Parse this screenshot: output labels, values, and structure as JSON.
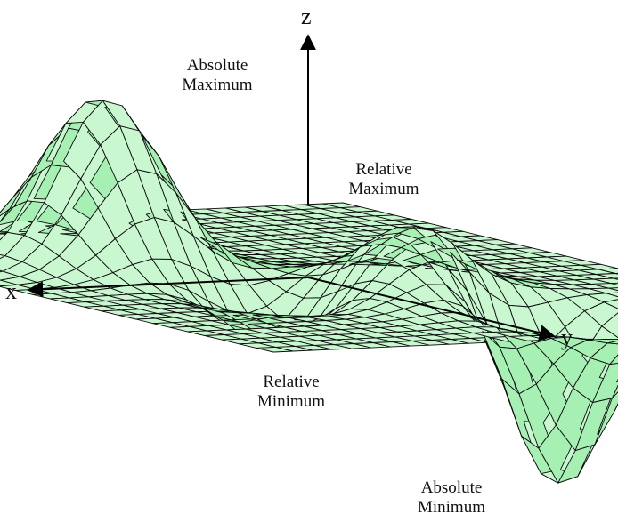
{
  "axes": {
    "x": "x",
    "y": "y",
    "z": "z"
  },
  "labels": {
    "absolute_maximum": [
      "Absolute",
      "Maximum"
    ],
    "relative_maximum": [
      "Relative",
      "Maximum"
    ],
    "relative_minimum": [
      "Relative",
      "Minimum"
    ],
    "absolute_minimum": [
      "Absolute",
      "Minimum"
    ]
  },
  "colors": {
    "surface": "#a6f0b4",
    "surface_light": "#c8f7d0",
    "mesh": "#0b0b0b",
    "axis": "#000000",
    "background": "#ffffff"
  }
}
